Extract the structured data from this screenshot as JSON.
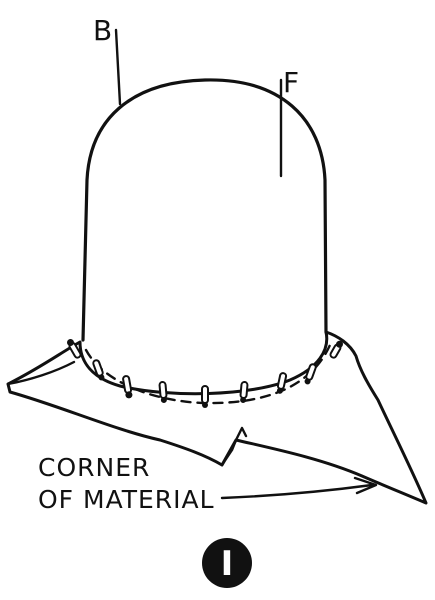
{
  "labels": {
    "back": "B",
    "front": "F",
    "caption_line1": "CORNER",
    "caption_line2": "OF MATERIAL"
  },
  "figure_number": "I",
  "colors": {
    "ink": "#111111",
    "paper": "#ffffff"
  }
}
